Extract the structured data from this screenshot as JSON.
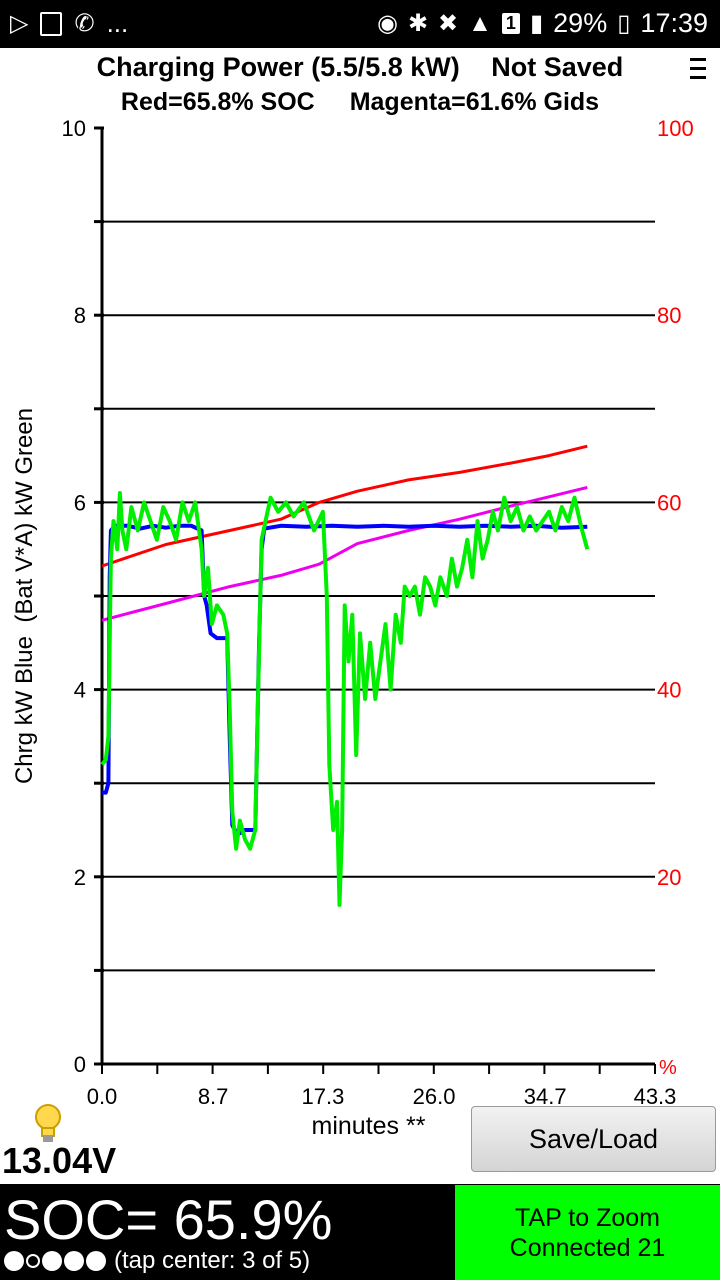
{
  "status_bar": {
    "left_icons": [
      "play-store-icon",
      "gallery-icon",
      "viber-icon"
    ],
    "ellipsis": "...",
    "battery_pct": "29%",
    "sim_label": "1",
    "time": "17:39"
  },
  "header": {
    "title": "Charging Power (5.5/5.8 kW)",
    "saved_status": "Not Saved",
    "soc_legend": "Red=65.8% SOC",
    "gids_legend": "Magenta=61.6% Gids"
  },
  "chart_data": {
    "type": "line",
    "ylabel": "Chrg kW Blue  (Bat V*A) kW Green",
    "xlabel": "minutes **",
    "y2_unit_label": "%",
    "xlim": [
      0,
      43.3
    ],
    "ylim": [
      0,
      10
    ],
    "y2lim": [
      0,
      100
    ],
    "x_ticks": [
      "0.0",
      "8.7",
      "17.3",
      "26.0",
      "34.7",
      "43.3"
    ],
    "y_ticks": [
      "0",
      "2",
      "4",
      "6",
      "8",
      "10"
    ],
    "y2_ticks": [
      "20",
      "40",
      "60",
      "80",
      "100"
    ],
    "grid": true,
    "colors": {
      "blue": "#0000ff",
      "green": "#00ee00",
      "red": "#ff0000",
      "magenta": "#ee00ee",
      "y2_axis": "#ff0000"
    },
    "series": [
      {
        "axis": "left",
        "color": "blue",
        "width": 4,
        "points": [
          [
            0,
            2.9
          ],
          [
            0.3,
            2.9
          ],
          [
            0.5,
            3.0
          ],
          [
            0.6,
            5.2
          ],
          [
            0.7,
            5.7
          ],
          [
            1.0,
            5.75
          ],
          [
            2,
            5.75
          ],
          [
            3,
            5.72
          ],
          [
            4,
            5.75
          ],
          [
            5,
            5.73
          ],
          [
            6,
            5.75
          ],
          [
            7,
            5.75
          ],
          [
            7.8,
            5.7
          ],
          [
            8.0,
            5.0
          ],
          [
            8.2,
            4.9
          ],
          [
            8.5,
            4.6
          ],
          [
            9,
            4.55
          ],
          [
            9.8,
            4.55
          ],
          [
            10.0,
            3.5
          ],
          [
            10.2,
            2.55
          ],
          [
            10.6,
            2.45
          ],
          [
            11.2,
            2.5
          ],
          [
            12.0,
            2.5
          ],
          [
            12.3,
            4.5
          ],
          [
            12.5,
            5.5
          ],
          [
            12.7,
            5.72
          ],
          [
            14,
            5.75
          ],
          [
            16,
            5.74
          ],
          [
            18,
            5.75
          ],
          [
            20,
            5.74
          ],
          [
            22,
            5.75
          ],
          [
            24,
            5.74
          ],
          [
            26,
            5.75
          ],
          [
            28,
            5.74
          ],
          [
            30,
            5.75
          ],
          [
            32,
            5.74
          ],
          [
            34,
            5.75
          ],
          [
            36,
            5.73
          ],
          [
            38,
            5.74
          ]
        ]
      },
      {
        "axis": "left",
        "color": "green",
        "width": 4,
        "points": [
          [
            0,
            3.2
          ],
          [
            0.3,
            3.25
          ],
          [
            0.5,
            3.5
          ],
          [
            0.6,
            4.5
          ],
          [
            0.7,
            5.4
          ],
          [
            0.9,
            5.8
          ],
          [
            1.2,
            5.5
          ],
          [
            1.4,
            6.1
          ],
          [
            1.6,
            5.7
          ],
          [
            1.9,
            5.5
          ],
          [
            2.3,
            5.95
          ],
          [
            2.8,
            5.7
          ],
          [
            3.3,
            6.0
          ],
          [
            3.8,
            5.8
          ],
          [
            4.3,
            5.6
          ],
          [
            4.8,
            5.95
          ],
          [
            5.3,
            5.8
          ],
          [
            5.8,
            5.6
          ],
          [
            6.3,
            6.0
          ],
          [
            6.8,
            5.8
          ],
          [
            7.3,
            6.0
          ],
          [
            7.8,
            5.5
          ],
          [
            8.0,
            5.0
          ],
          [
            8.3,
            5.3
          ],
          [
            8.6,
            4.7
          ],
          [
            9,
            4.9
          ],
          [
            9.5,
            4.8
          ],
          [
            9.8,
            4.6
          ],
          [
            10.0,
            3.8
          ],
          [
            10.2,
            2.7
          ],
          [
            10.5,
            2.3
          ],
          [
            10.8,
            2.6
          ],
          [
            11.2,
            2.4
          ],
          [
            11.6,
            2.3
          ],
          [
            12.0,
            2.5
          ],
          [
            12.2,
            3.8
          ],
          [
            12.5,
            5.6
          ],
          [
            12.8,
            5.8
          ],
          [
            13.2,
            6.05
          ],
          [
            13.8,
            5.9
          ],
          [
            14.4,
            6.0
          ],
          [
            15,
            5.85
          ],
          [
            15.8,
            6.0
          ],
          [
            16.6,
            5.7
          ],
          [
            17.3,
            5.9
          ],
          [
            17.6,
            5.0
          ],
          [
            17.8,
            3.2
          ],
          [
            18.1,
            2.5
          ],
          [
            18.4,
            2.8
          ],
          [
            18.6,
            1.7
          ],
          [
            18.8,
            2.5
          ],
          [
            19.0,
            4.9
          ],
          [
            19.3,
            4.3
          ],
          [
            19.6,
            4.8
          ],
          [
            19.9,
            3.3
          ],
          [
            20.2,
            4.6
          ],
          [
            20.6,
            3.9
          ],
          [
            21,
            4.5
          ],
          [
            21.4,
            3.9
          ],
          [
            21.8,
            4.3
          ],
          [
            22.2,
            4.7
          ],
          [
            22.6,
            4.0
          ],
          [
            23.0,
            4.8
          ],
          [
            23.4,
            4.5
          ],
          [
            23.7,
            5.1
          ],
          [
            24.1,
            5.0
          ],
          [
            24.5,
            5.1
          ],
          [
            24.9,
            4.8
          ],
          [
            25.3,
            5.2
          ],
          [
            25.7,
            5.1
          ],
          [
            26.1,
            4.9
          ],
          [
            26.5,
            5.2
          ],
          [
            27.0,
            5.0
          ],
          [
            27.4,
            5.4
          ],
          [
            27.8,
            5.1
          ],
          [
            28.2,
            5.3
          ],
          [
            28.6,
            5.6
          ],
          [
            29.0,
            5.2
          ],
          [
            29.4,
            5.8
          ],
          [
            29.8,
            5.4
          ],
          [
            30.2,
            5.6
          ],
          [
            30.6,
            5.9
          ],
          [
            31,
            5.7
          ],
          [
            31.5,
            6.05
          ],
          [
            32,
            5.8
          ],
          [
            32.5,
            5.95
          ],
          [
            33,
            5.7
          ],
          [
            33.5,
            5.85
          ],
          [
            34,
            5.7
          ],
          [
            34.5,
            5.8
          ],
          [
            35,
            5.9
          ],
          [
            35.5,
            5.7
          ],
          [
            36,
            5.95
          ],
          [
            36.5,
            5.8
          ],
          [
            37,
            6.05
          ],
          [
            37.5,
            5.75
          ],
          [
            38,
            5.5
          ]
        ]
      },
      {
        "axis": "right",
        "color": "red",
        "width": 3,
        "points": [
          [
            0,
            53.2
          ],
          [
            5,
            55.5
          ],
          [
            10,
            57
          ],
          [
            14,
            58.2
          ],
          [
            17,
            60
          ],
          [
            20,
            61.2
          ],
          [
            24,
            62.4
          ],
          [
            28,
            63.2
          ],
          [
            32,
            64.2
          ],
          [
            35,
            65.0
          ],
          [
            38,
            66.0
          ]
        ]
      },
      {
        "axis": "right",
        "color": "magenta",
        "width": 3,
        "points": [
          [
            0,
            47.4
          ],
          [
            5,
            49.2
          ],
          [
            10,
            51.0
          ],
          [
            14,
            52.2
          ],
          [
            17,
            53.4
          ],
          [
            20,
            55.6
          ],
          [
            24,
            57.0
          ],
          [
            28,
            58.2
          ],
          [
            32,
            59.6
          ],
          [
            35,
            60.6
          ],
          [
            38,
            61.6
          ]
        ]
      }
    ]
  },
  "footer": {
    "voltage": "13.04V",
    "save_load_label": "Save/Load",
    "soc_text": "SOC= 65.9%",
    "tap_hint": "(tap center: 3 of 5)",
    "zoom_hint": "TAP to Zoom",
    "connection": "Connected 21"
  }
}
